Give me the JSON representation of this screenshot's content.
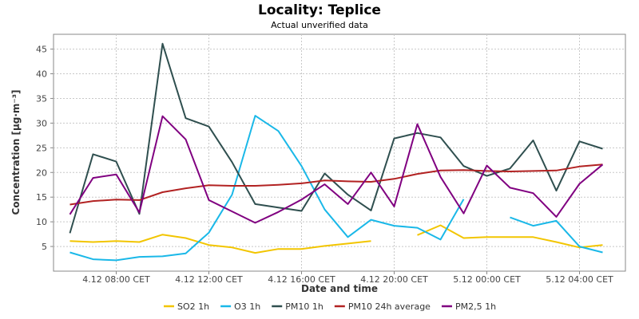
{
  "chart_data": {
    "type": "line",
    "title": "Locality: Teplice",
    "subtitle": "Actual unverified data",
    "xlabel": "Date and time",
    "ylabel": "Concentration [µg·m⁻³]",
    "ylim": [
      0,
      48
    ],
    "yticks": [
      5,
      10,
      15,
      20,
      25,
      30,
      35,
      40,
      45
    ],
    "x": [
      "4.12 06:00",
      "4.12 07:00",
      "4.12 08:00",
      "4.12 09:00",
      "4.12 10:00",
      "4.12 11:00",
      "4.12 12:00",
      "4.12 13:00",
      "4.12 14:00",
      "4.12 15:00",
      "4.12 16:00",
      "4.12 17:00",
      "4.12 18:00",
      "4.12 19:00",
      "4.12 20:00",
      "4.12 21:00",
      "4.12 22:00",
      "4.12 23:00",
      "5.12 00:00",
      "5.12 01:00",
      "5.12 02:00",
      "5.12 03:00",
      "5.12 04:00",
      "5.12 05:00"
    ],
    "xticks": [
      {
        "index": 2,
        "label": "4.12 08:00 CET"
      },
      {
        "index": 6,
        "label": "4.12 12:00 CET"
      },
      {
        "index": 10,
        "label": "4.12 16:00 CET"
      },
      {
        "index": 14,
        "label": "4.12 20:00 CET"
      },
      {
        "index": 18,
        "label": "5.12 00:00 CET"
      },
      {
        "index": 22,
        "label": "5.12 04:00 CET"
      }
    ],
    "grid": true,
    "legend_position": "bottom",
    "series": [
      {
        "name": "SO2 1h",
        "color": "#f2c500",
        "values": [
          6.1,
          5.9,
          6.1,
          5.9,
          7.4,
          6.7,
          5.3,
          4.8,
          3.7,
          4.5,
          4.5,
          5.1,
          5.6,
          6.1,
          null,
          7.3,
          9.3,
          6.7,
          6.9,
          6.9,
          6.9,
          5.9,
          4.8,
          5.3
        ]
      },
      {
        "name": "O3 1h",
        "color": "#1ab8e8",
        "values": [
          3.8,
          2.4,
          2.2,
          2.9,
          3.0,
          3.6,
          7.8,
          15.5,
          31.5,
          28.4,
          21.3,
          12.5,
          6.9,
          10.4,
          9.2,
          8.8,
          6.4,
          14.6,
          null,
          10.9,
          9.2,
          10.2,
          5.0,
          3.8
        ]
      },
      {
        "name": "PM10 1h",
        "color": "#2f4f4f",
        "values": [
          7.7,
          23.7,
          22.2,
          11.6,
          46.1,
          31.0,
          29.3,
          22.1,
          13.6,
          12.9,
          12.2,
          19.8,
          15.5,
          12.3,
          26.9,
          28.0,
          27.1,
          21.3,
          19.3,
          20.8,
          26.5,
          16.3,
          26.3,
          24.8
        ]
      },
      {
        "name": "PM10 24h average",
        "color": "#b22222",
        "values": [
          13.5,
          14.2,
          14.5,
          14.4,
          16.0,
          16.8,
          17.4,
          17.3,
          17.3,
          17.5,
          17.8,
          18.4,
          18.2,
          18.1,
          18.7,
          19.7,
          20.4,
          20.5,
          20.3,
          20.2,
          20.3,
          20.4,
          21.2,
          21.6
        ]
      },
      {
        "name": "PM2,5 1h",
        "color": "#800080",
        "values": [
          11.5,
          18.9,
          19.6,
          11.9,
          31.4,
          26.7,
          14.4,
          12.1,
          9.8,
          12.0,
          14.5,
          17.6,
          13.6,
          20.0,
          13.1,
          29.8,
          19.1,
          11.7,
          21.4,
          16.9,
          15.8,
          11.0,
          17.7,
          21.6
        ]
      }
    ]
  }
}
